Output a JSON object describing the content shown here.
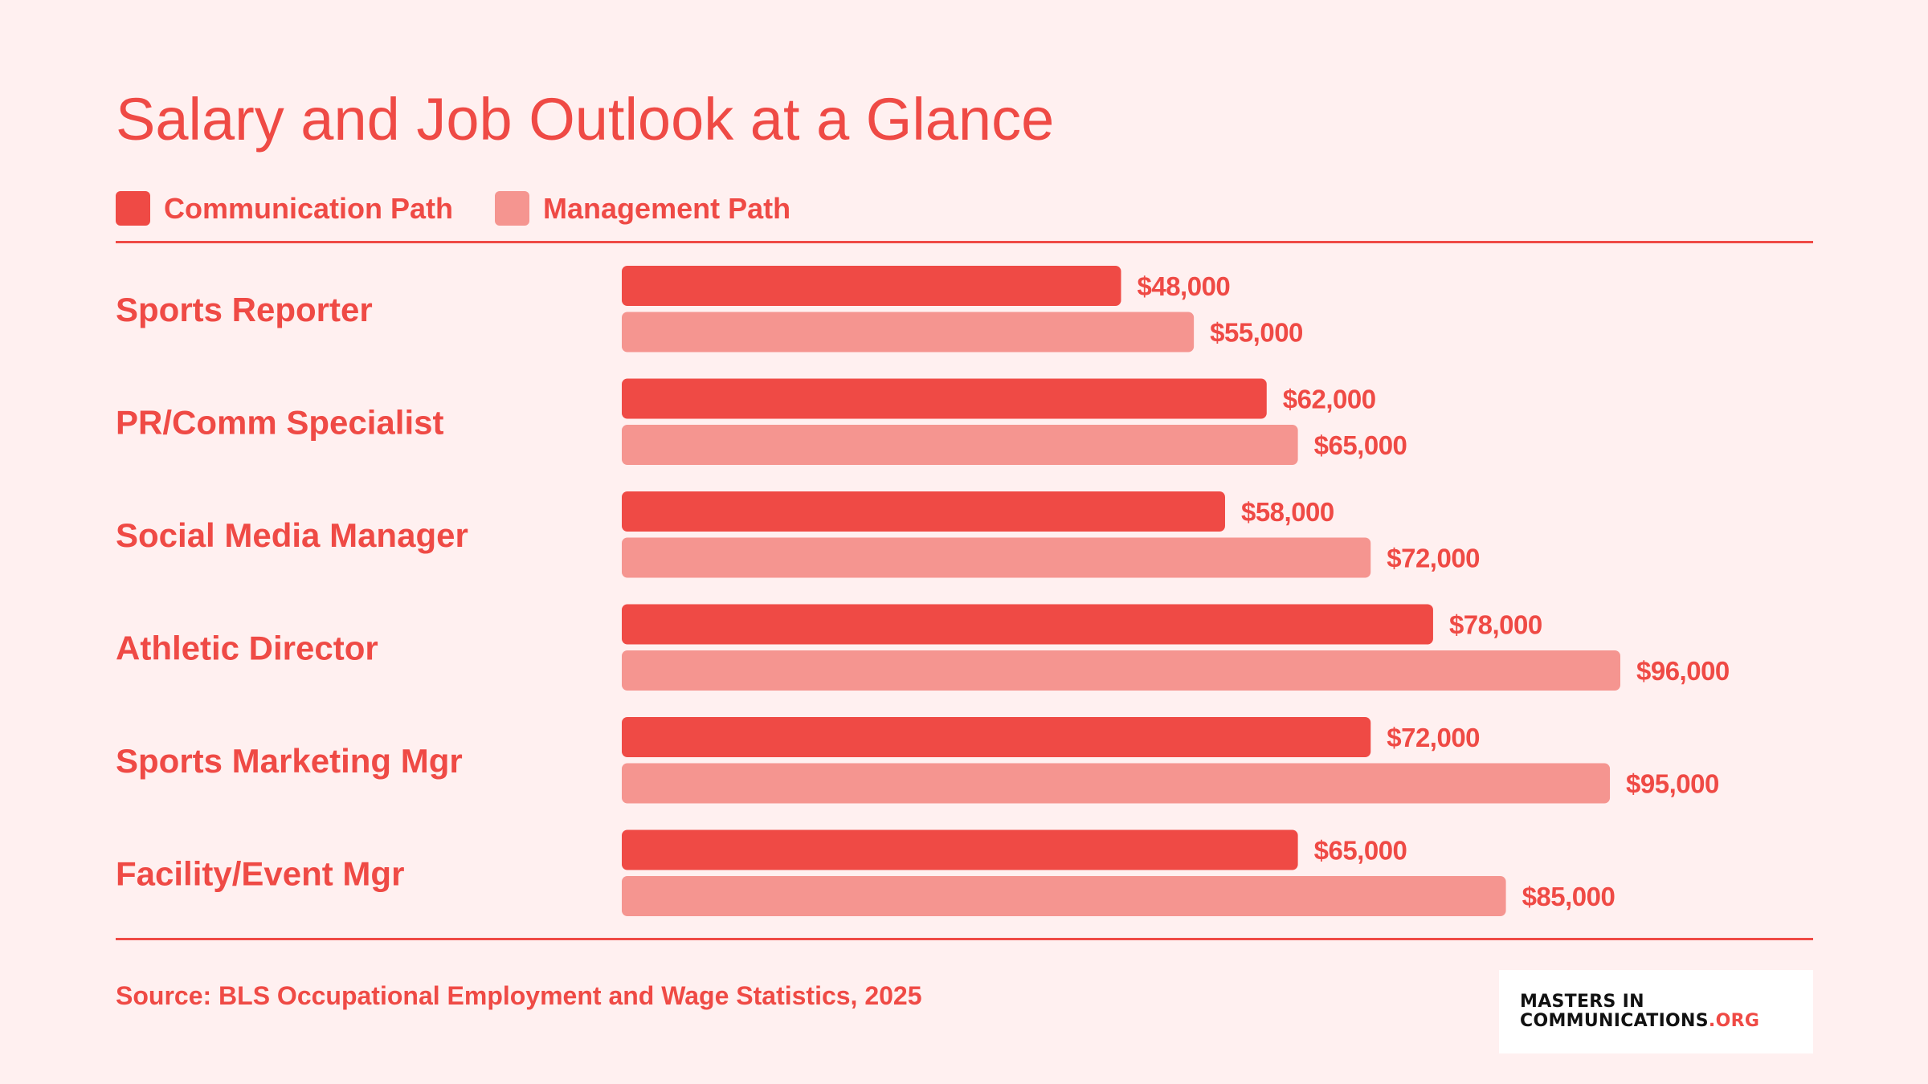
{
  "title": "Salary and Job Outlook at a Glance",
  "source": "Source: BLS Occupational Employment and Wage Statistics, 2025",
  "logo": {
    "line1": "MASTERS IN",
    "line2_main": "COMMUNICATIONS",
    "line2_suffix": ".ORG"
  },
  "colors": {
    "communication": "#ef4a45",
    "management": "#f59590",
    "text": "#ef4a45",
    "background": "#fff0f0"
  },
  "chart_data": {
    "type": "bar",
    "orientation": "horizontal",
    "categories": [
      "Sports Reporter",
      "PR/Comm Specialist",
      "Social Media Manager",
      "Athletic Director",
      "Sports Marketing Mgr",
      "Facility/Event Mgr"
    ],
    "series": [
      {
        "name": "Communication Path",
        "values": [
          48000,
          62000,
          58000,
          78000,
          72000,
          65000
        ],
        "labels": [
          "$48,000",
          "$62,000",
          "$58,000",
          "$78,000",
          "$72,000",
          "$65,000"
        ]
      },
      {
        "name": "Management Path",
        "values": [
          55000,
          65000,
          72000,
          96000,
          95000,
          85000
        ],
        "labels": [
          "$55,000",
          "$65,000",
          "$72,000",
          "$96,000",
          "$95,000",
          "$85,000"
        ]
      }
    ],
    "xlim": [
      0,
      96000
    ],
    "legend": "top-left",
    "grid": false
  }
}
